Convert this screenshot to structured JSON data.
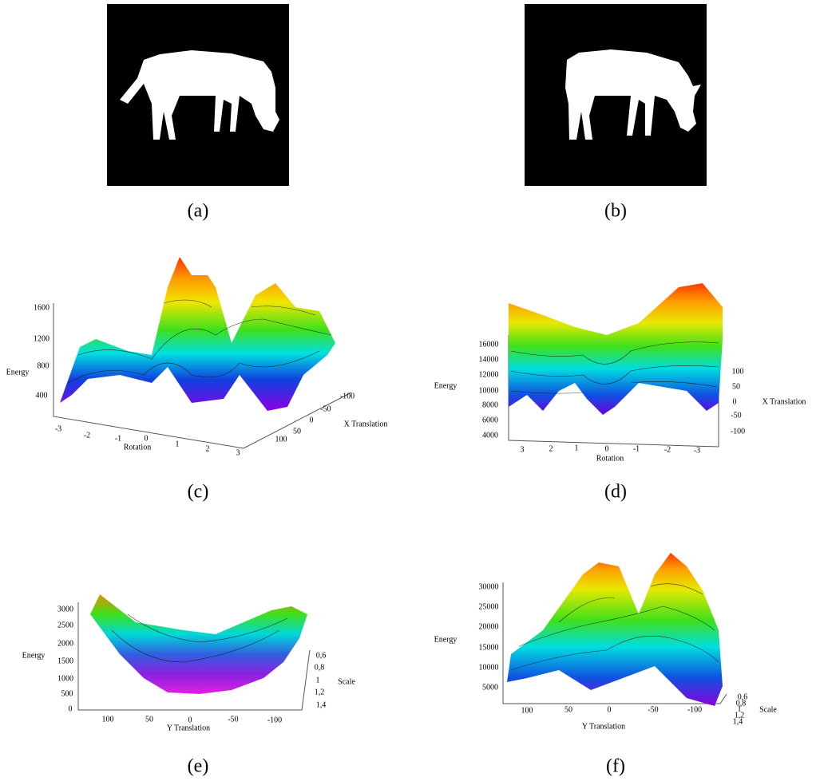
{
  "panels": [
    {
      "caption": "(a)"
    },
    {
      "caption": "(b)"
    },
    {
      "caption": "(c)",
      "axes": [
        {
          "label": "Energy",
          "ticks": [
            "1600",
            "1200",
            "800",
            "400"
          ]
        },
        {
          "label": "Rotation",
          "ticks": [
            "-3",
            "-2",
            "-1",
            "0",
            "1",
            "2",
            "3"
          ]
        },
        {
          "label": "X Translation",
          "ticks": [
            "-100",
            "-50",
            "0",
            "50",
            "100"
          ]
        }
      ]
    },
    {
      "caption": "(d)",
      "axes": [
        {
          "label": "Energy",
          "ticks": [
            "16000",
            "14000",
            "12000",
            "10000",
            "8000",
            "6000",
            "4000"
          ]
        },
        {
          "label": "Rotation",
          "ticks": [
            "3",
            "2",
            "1",
            "0",
            "-1",
            "-2",
            "-3"
          ]
        },
        {
          "label": "X Translation",
          "ticks": [
            "100",
            "50",
            "0",
            "-50",
            "-100"
          ]
        }
      ]
    },
    {
      "caption": "(e)",
      "axes": [
        {
          "label": "Energy",
          "ticks": [
            "3000",
            "2500",
            "2000",
            "1500",
            "1000",
            "500",
            "0"
          ]
        },
        {
          "label": "Y Translation",
          "ticks": [
            "100",
            "50",
            "0",
            "-50",
            "-100"
          ]
        },
        {
          "label": "Scale",
          "ticks": [
            "0,6",
            "0,8",
            "1",
            "1,2",
            "1,4"
          ]
        }
      ]
    },
    {
      "caption": "(f)",
      "axes": [
        {
          "label": "Energy",
          "ticks": [
            "30000",
            "25000",
            "20000",
            "15000",
            "10000",
            "5000"
          ]
        },
        {
          "label": "Y Translation",
          "ticks": [
            "100",
            "50",
            "0",
            "-50",
            "-100"
          ]
        },
        {
          "label": "Scale",
          "ticks": [
            "0,6",
            "0,8",
            "1",
            "1,2",
            "1,4"
          ]
        }
      ]
    }
  ]
}
